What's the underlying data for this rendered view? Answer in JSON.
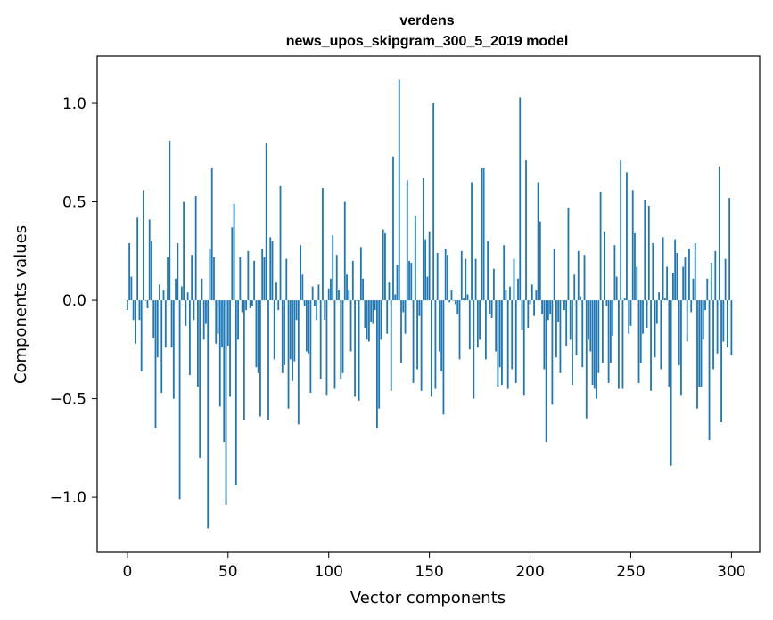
{
  "chart_data": {
    "type": "bar",
    "title": "verdens",
    "subtitle": "news_upos_skipgram_300_5_2019 model",
    "xlabel": "Vector components",
    "ylabel": "Components values",
    "xlim": [
      -15,
      314
    ],
    "ylim": [
      -1.28,
      1.24
    ],
    "xticks": [
      0,
      50,
      100,
      150,
      200,
      250,
      300
    ],
    "xtick_labels": [
      "0",
      "50",
      "100",
      "150",
      "200",
      "250",
      "300"
    ],
    "yticks": [
      -1.0,
      -0.5,
      0.0,
      0.5,
      1.0
    ],
    "ytick_labels": [
      "−1.0",
      "−0.5",
      "0.0",
      "0.5",
      "1.0"
    ],
    "grid": false,
    "bar_color": "#1f77b4",
    "values": [
      -0.05,
      0.29,
      0.12,
      -0.1,
      -0.22,
      0.42,
      -0.1,
      -0.36,
      0.56,
      0.0,
      -0.04,
      0.41,
      0.3,
      -0.19,
      -0.65,
      -0.29,
      0.08,
      -0.47,
      0.05,
      -0.24,
      0.22,
      0.81,
      -0.24,
      -0.5,
      0.11,
      0.29,
      -1.01,
      0.07,
      0.5,
      -0.13,
      0.04,
      -0.38,
      0.23,
      -0.1,
      0.53,
      -0.44,
      -0.8,
      0.11,
      -0.2,
      -0.12,
      -1.16,
      0.26,
      0.67,
      0.22,
      -0.22,
      -0.17,
      -0.54,
      -0.24,
      -0.72,
      -1.04,
      -0.23,
      -0.49,
      0.37,
      0.49,
      -0.94,
      -0.2,
      0.22,
      -0.06,
      -0.61,
      -0.05,
      0.25,
      -0.04,
      -0.03,
      0.2,
      -0.34,
      -0.37,
      -0.59,
      0.26,
      0.22,
      0.8,
      -0.61,
      0.32,
      0.3,
      -0.3,
      0.09,
      -0.05,
      0.58,
      -0.37,
      -0.33,
      0.21,
      -0.55,
      -0.3,
      -0.41,
      -0.31,
      -0.1,
      -0.63,
      0.28,
      0.13,
      -0.03,
      -0.26,
      -0.27,
      -0.47,
      0.07,
      -0.03,
      -0.1,
      0.08,
      -0.4,
      0.57,
      -0.1,
      -0.48,
      0.06,
      0.11,
      0.33,
      -0.45,
      0.23,
      0.05,
      -0.4,
      -0.37,
      0.5,
      0.13,
      0.05,
      -0.26,
      0.2,
      -0.49,
      0.0,
      -0.51,
      0.27,
      0.11,
      -0.14,
      -0.2,
      -0.21,
      -0.11,
      -0.12,
      -0.05,
      -0.65,
      -0.55,
      -0.2,
      0.36,
      0.34,
      -0.17,
      0.09,
      -0.46,
      0.73,
      0.03,
      0.18,
      1.12,
      -0.32,
      -0.06,
      -0.17,
      0.61,
      0.2,
      0.19,
      -0.42,
      0.43,
      -0.35,
      -0.08,
      -0.46,
      0.62,
      0.31,
      0.12,
      0.35,
      -0.49,
      1.0,
      -0.45,
      0.24,
      -0.26,
      -0.36,
      -0.58,
      0.26,
      0.23,
      -0.01,
      0.05,
      0.0,
      -0.02,
      -0.07,
      -0.3,
      0.25,
      0.01,
      0.21,
      0.03,
      -0.25,
      0.6,
      -0.5,
      0.21,
      -0.24,
      -0.2,
      0.67,
      0.67,
      -0.3,
      0.3,
      -0.07,
      -0.09,
      0.16,
      -0.26,
      -0.44,
      -0.34,
      -0.43,
      0.28,
      0.05,
      -0.45,
      0.07,
      -0.35,
      0.21,
      -0.42,
      0.11,
      1.03,
      -0.15,
      -0.48,
      0.71,
      -0.14,
      -0.02,
      0.08,
      -0.08,
      0.05,
      0.6,
      0.4,
      -0.07,
      -0.35,
      -0.72,
      -0.1,
      -0.07,
      -0.53,
      0.26,
      -0.29,
      -0.11,
      -0.37,
      0.0,
      -0.05,
      -0.23,
      0.47,
      -0.2,
      -0.43,
      0.13,
      -0.28,
      0.25,
      0.02,
      -0.34,
      0.23,
      -0.6,
      -0.2,
      -0.26,
      -0.43,
      -0.45,
      -0.5,
      -0.37,
      0.55,
      -0.32,
      0.35,
      -0.03,
      -0.42,
      -0.32,
      -0.18,
      0.28,
      0.12,
      -0.45,
      0.71,
      -0.45,
      0.01,
      0.65,
      -0.17,
      -0.13,
      0.56,
      0.34,
      0.17,
      -0.42,
      -0.32,
      -0.17,
      0.51,
      -0.14,
      0.48,
      -0.46,
      0.29,
      -0.29,
      -0.12,
      0.04,
      -0.35,
      0.32,
      0.01,
      0.17,
      -0.44,
      -0.84,
      0.14,
      0.31,
      0.24,
      -0.33,
      -0.48,
      0.17,
      0.22,
      -0.21,
      0.26,
      -0.06,
      0.11,
      0.29,
      -0.55,
      -0.44,
      -0.44,
      -0.2,
      -0.05,
      0.11,
      -0.71,
      0.19,
      -0.35,
      0.25,
      -0.27,
      0.68,
      -0.62,
      -0.21,
      0.21,
      -0.24,
      0.52,
      -0.28
    ]
  }
}
